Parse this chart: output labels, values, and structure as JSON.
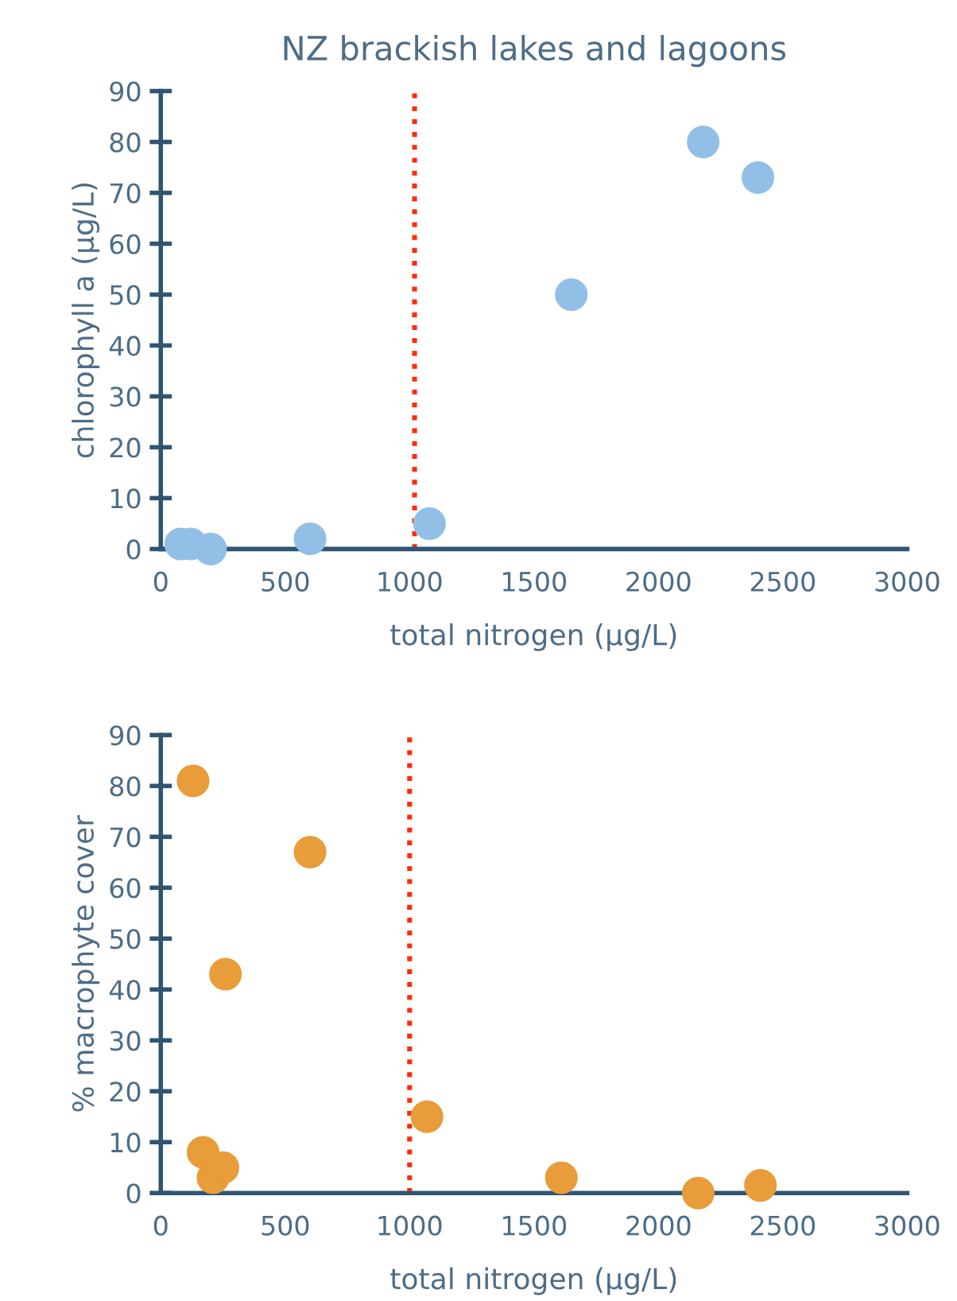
{
  "chart_data": [
    {
      "type": "scatter",
      "title": "NZ brackish lakes and lagoons",
      "xlabel": "total nitrogen (µg/L)",
      "ylabel": "chlorophyll a (µg/L)",
      "xlim": [
        0,
        3000
      ],
      "xticks": [
        0,
        500,
        1000,
        1500,
        2000,
        2500,
        3000
      ],
      "ylim": [
        0,
        90
      ],
      "yticks": [
        0,
        10,
        20,
        30,
        40,
        50,
        60,
        70,
        80,
        90
      ],
      "grid": false,
      "legend": false,
      "marker": "circle",
      "series": [
        {
          "color": "#92bfe6",
          "x": [
            80,
            120,
            200,
            600,
            1080,
            1650,
            2180,
            2400
          ],
          "values": [
            1,
            1,
            0,
            2,
            5,
            50,
            80,
            73
          ]
        }
      ],
      "ref_lines": [
        {
          "axis": "x",
          "value": 1020,
          "color": "#ff2a0a",
          "line_style": "dotted"
        }
      ]
    },
    {
      "type": "scatter",
      "xlabel": "total nitrogen (µg/L)",
      "ylabel": "% macrophyte cover",
      "xlim": [
        0,
        3000
      ],
      "xticks": [
        0,
        500,
        1000,
        1500,
        2000,
        2500,
        3000
      ],
      "ylim": [
        0,
        90
      ],
      "yticks": [
        0,
        10,
        20,
        30,
        40,
        50,
        60,
        70,
        80,
        90
      ],
      "grid": false,
      "legend": false,
      "marker": "circle",
      "series": [
        {
          "color": "#e89c3a",
          "x": [
            130,
            170,
            210,
            250,
            260,
            600,
            1070,
            1610,
            2160,
            2410
          ],
          "values": [
            81,
            8,
            3,
            5,
            43,
            67,
            15,
            3,
            0,
            1.5
          ]
        }
      ],
      "ref_lines": [
        {
          "axis": "x",
          "value": 1000,
          "color": "#ff2a0a",
          "line_style": "dotted"
        }
      ]
    }
  ]
}
